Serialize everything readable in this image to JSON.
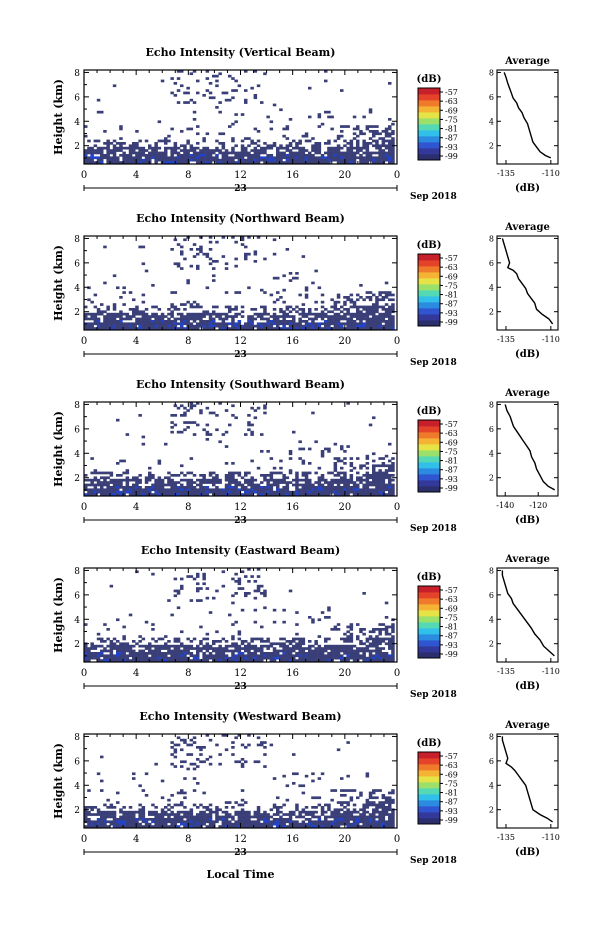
{
  "figure": {
    "date_label": "Sep 2018",
    "xlabel": "Local Time",
    "colorbar": {
      "unit": "(dB)",
      "ticks": [
        "-57",
        "-63",
        "-69",
        "-75",
        "-81",
        "-87",
        "-93",
        "-99"
      ],
      "colors": [
        "#2c2f6e",
        "#33399a",
        "#2f55d0",
        "#2b8be0",
        "#31c0ea",
        "#55d8b4",
        "#9be06a",
        "#e5e346",
        "#f5b335",
        "#f07a2c",
        "#e4432a",
        "#c8202a"
      ]
    },
    "panel_color": "#3a3f78",
    "low_color": "#2244cc"
  },
  "chart_data": [
    {
      "type": "heatmap",
      "title": "Echo Intensity (Vertical Beam)",
      "ylabel": "Height (km)",
      "x_ticks": [
        "0",
        "4",
        "8",
        "12",
        "16",
        "20",
        "0"
      ],
      "day_label": "23",
      "y_ticks": [
        "2",
        "4",
        "6",
        "8"
      ],
      "xlim": [
        0,
        24
      ],
      "ylim": [
        0.5,
        8.2
      ],
      "z_range": [
        -99,
        -57
      ],
      "seed": 11,
      "profile": {
        "title": "Average",
        "xlabel": "(dB)",
        "x_ticks": [
          "-135",
          "-110"
        ],
        "xlim": [
          -140,
          -106
        ],
        "y_ticks": [
          "2",
          "4",
          "6",
          "8"
        ],
        "ylim": [
          0.5,
          8.2
        ],
        "points": [
          [
            -110,
            1.0
          ],
          [
            -113,
            1.2
          ],
          [
            -116,
            1.5
          ],
          [
            -118,
            1.9
          ],
          [
            -120,
            2.3
          ],
          [
            -121,
            2.8
          ],
          [
            -122,
            3.3
          ],
          [
            -123,
            3.8
          ],
          [
            -125,
            4.3
          ],
          [
            -126,
            4.7
          ],
          [
            -128,
            5.1
          ],
          [
            -129,
            5.5
          ],
          [
            -131,
            5.9
          ],
          [
            -132,
            6.3
          ],
          [
            -133,
            6.7
          ],
          [
            -134,
            7.1
          ],
          [
            -135,
            7.6
          ],
          [
            -136,
            8.0
          ]
        ]
      }
    },
    {
      "type": "heatmap",
      "title": "Echo Intensity (Northward Beam)",
      "ylabel": "Height (km)",
      "x_ticks": [
        "0",
        "4",
        "8",
        "12",
        "16",
        "20",
        "0"
      ],
      "day_label": "23",
      "y_ticks": [
        "2",
        "4",
        "6",
        "8"
      ],
      "xlim": [
        0,
        24
      ],
      "ylim": [
        0.5,
        8.2
      ],
      "z_range": [
        -99,
        -57
      ],
      "seed": 23,
      "profile": {
        "title": "Average",
        "xlabel": "(dB)",
        "x_ticks": [
          "-135",
          "-110"
        ],
        "xlim": [
          -140,
          -106
        ],
        "y_ticks": [
          "2",
          "4",
          "6",
          "8"
        ],
        "ylim": [
          0.5,
          8.2
        ],
        "points": [
          [
            -109,
            1.0
          ],
          [
            -111,
            1.4
          ],
          [
            -115,
            1.8
          ],
          [
            -118,
            2.2
          ],
          [
            -119,
            2.7
          ],
          [
            -121,
            3.1
          ],
          [
            -123,
            3.5
          ],
          [
            -124,
            3.9
          ],
          [
            -126,
            4.3
          ],
          [
            -128,
            4.7
          ],
          [
            -129,
            5.1
          ],
          [
            -131,
            5.4
          ],
          [
            -134,
            5.6
          ],
          [
            -133,
            6.0
          ],
          [
            -134,
            6.5
          ],
          [
            -135,
            7.0
          ],
          [
            -136,
            7.5
          ],
          [
            -137,
            8.0
          ]
        ]
      }
    },
    {
      "type": "heatmap",
      "title": "Echo Intensity (Southward Beam)",
      "ylabel": "Height (km)",
      "x_ticks": [
        "0",
        "4",
        "8",
        "12",
        "16",
        "20",
        "0"
      ],
      "day_label": "23",
      "y_ticks": [
        "2",
        "4",
        "6",
        "8"
      ],
      "xlim": [
        0,
        24
      ],
      "ylim": [
        0.5,
        8.2
      ],
      "z_range": [
        -99,
        -57
      ],
      "seed": 37,
      "profile": {
        "title": "Average",
        "xlabel": "(dB)",
        "x_ticks": [
          "-140",
          "-120"
        ],
        "xlim": [
          -145,
          -108
        ],
        "y_ticks": [
          "2",
          "4",
          "6",
          "8"
        ],
        "ylim": [
          0.5,
          8.2
        ],
        "points": [
          [
            -110,
            1.0
          ],
          [
            -114,
            1.3
          ],
          [
            -117,
            1.7
          ],
          [
            -119,
            2.2
          ],
          [
            -121,
            2.7
          ],
          [
            -122,
            3.2
          ],
          [
            -124,
            3.7
          ],
          [
            -125,
            4.2
          ],
          [
            -127,
            4.6
          ],
          [
            -129,
            5.0
          ],
          [
            -131,
            5.4
          ],
          [
            -133,
            5.8
          ],
          [
            -135,
            6.2
          ],
          [
            -136,
            6.6
          ],
          [
            -137,
            7.0
          ],
          [
            -139,
            7.5
          ],
          [
            -140,
            8.0
          ]
        ]
      }
    },
    {
      "type": "heatmap",
      "title": "Echo Intensity (Eastward Beam)",
      "ylabel": "Height (km)",
      "x_ticks": [
        "0",
        "4",
        "8",
        "12",
        "16",
        "20",
        "0"
      ],
      "day_label": "23",
      "y_ticks": [
        "2",
        "4",
        "6",
        "8"
      ],
      "xlim": [
        0,
        24
      ],
      "ylim": [
        0.5,
        8.2
      ],
      "z_range": [
        -99,
        -57
      ],
      "seed": 53,
      "profile": {
        "title": "Average",
        "xlabel": "(dB)",
        "x_ticks": [
          "-135",
          "-110"
        ],
        "xlim": [
          -140,
          -106
        ],
        "y_ticks": [
          "2",
          "4",
          "6",
          "8"
        ],
        "ylim": [
          0.5,
          8.2
        ],
        "points": [
          [
            -108,
            1.0
          ],
          [
            -111,
            1.4
          ],
          [
            -114,
            1.8
          ],
          [
            -116,
            2.3
          ],
          [
            -119,
            2.8
          ],
          [
            -121,
            3.3
          ],
          [
            -123,
            3.7
          ],
          [
            -125,
            4.1
          ],
          [
            -127,
            4.5
          ],
          [
            -129,
            4.9
          ],
          [
            -131,
            5.3
          ],
          [
            -132,
            5.7
          ],
          [
            -134,
            6.1
          ],
          [
            -135,
            6.6
          ],
          [
            -136,
            7.1
          ],
          [
            -137,
            7.6
          ],
          [
            -137,
            8.0
          ]
        ]
      }
    },
    {
      "type": "heatmap",
      "title": "Echo Intensity (Westward Beam)",
      "ylabel": "Height (km)",
      "x_ticks": [
        "0",
        "4",
        "8",
        "12",
        "16",
        "20",
        "0"
      ],
      "day_label": "23",
      "y_ticks": [
        "2",
        "4",
        "6",
        "8"
      ],
      "xlim": [
        0,
        24
      ],
      "ylim": [
        0.5,
        8.2
      ],
      "z_range": [
        -99,
        -57
      ],
      "seed": 71,
      "profile": {
        "title": "Average",
        "xlabel": "(dB)",
        "x_ticks": [
          "-135",
          "-110"
        ],
        "xlim": [
          -140,
          -106
        ],
        "y_ticks": [
          "2",
          "4",
          "6",
          "8"
        ],
        "ylim": [
          0.5,
          8.2
        ],
        "points": [
          [
            -109,
            1.0
          ],
          [
            -112,
            1.3
          ],
          [
            -116,
            1.6
          ],
          [
            -120,
            2.0
          ],
          [
            -121,
            2.5
          ],
          [
            -122,
            3.0
          ],
          [
            -123,
            3.5
          ],
          [
            -124,
            4.0
          ],
          [
            -126,
            4.4
          ],
          [
            -128,
            4.8
          ],
          [
            -130,
            5.2
          ],
          [
            -132,
            5.5
          ],
          [
            -135,
            5.8
          ],
          [
            -134,
            6.2
          ],
          [
            -135,
            6.7
          ],
          [
            -136,
            7.2
          ],
          [
            -137,
            7.7
          ],
          [
            -137,
            8.0
          ]
        ]
      }
    }
  ]
}
